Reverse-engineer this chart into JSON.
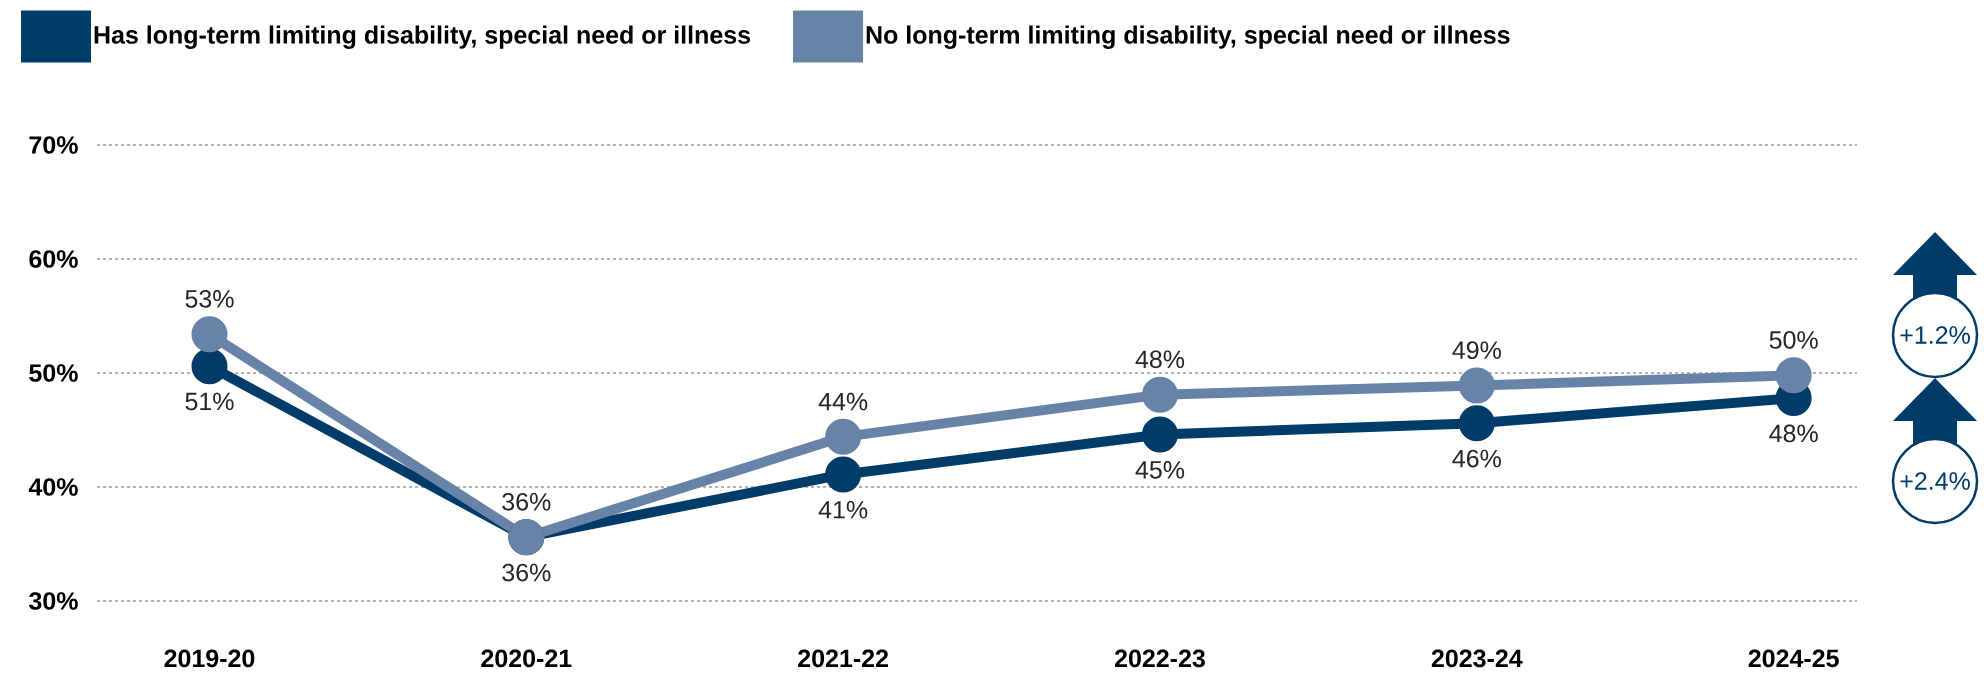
{
  "chart_data": {
    "type": "line",
    "categories": [
      "2019-20",
      "2020-21",
      "2021-22",
      "2022-23",
      "2023-24",
      "2024-25"
    ],
    "series": [
      {
        "name": "Has long-term limiting disability, special need or illness",
        "color": "#003c6a",
        "values": [
          50.6,
          35.6,
          41.1,
          44.6,
          45.6,
          47.8
        ],
        "value_labels": [
          "51%",
          "36%",
          "41%",
          "45%",
          "46%",
          "48%"
        ]
      },
      {
        "name": "No long-term limiting disability, special need or illness",
        "color": "#6883a8",
        "values": [
          53.4,
          35.6,
          44.4,
          48.1,
          48.9,
          49.8
        ],
        "value_labels": [
          "53%",
          "36%",
          "44%",
          "48%",
          "49%",
          "50%"
        ]
      }
    ],
    "ylim": [
      30,
      70
    ],
    "yticks": [
      {
        "value": 30,
        "label": "30%"
      },
      {
        "value": 40,
        "label": "40%"
      },
      {
        "value": 50,
        "label": "50%"
      },
      {
        "value": 60,
        "label": "60%"
      },
      {
        "value": 70,
        "label": "70%"
      }
    ],
    "grid": "y",
    "legend": "top left",
    "marker": "circle",
    "line_style": "solid",
    "annotations": [
      "+1.2%",
      "+2.4%"
    ]
  }
}
